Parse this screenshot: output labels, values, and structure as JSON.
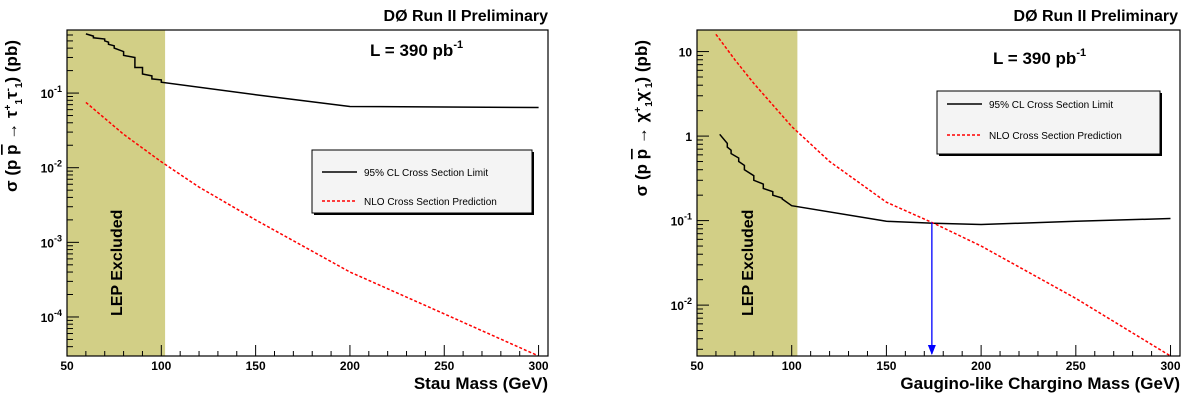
{
  "chart_data": [
    {
      "type": "line",
      "header": "DØ Run II Preliminary",
      "luminosity": {
        "base": "L = 390 pb",
        "sup": "-1"
      },
      "xlabel": "Stau Mass (GeV)",
      "ylabel": {
        "pre": "σ (p",
        "p2": "p",
        "arrow": " → ",
        "p1": "τ",
        "s1": "+",
        "b1": "1",
        "p3": "τ",
        "s2": "-",
        "b2": "1",
        "end": ") (pb)"
      },
      "xlim": [
        50,
        305
      ],
      "ylim": [
        3e-05,
        0.7
      ],
      "yscale": "log",
      "xticks": [
        50,
        100,
        150,
        200,
        250,
        300
      ],
      "yticks": [
        {
          "value": 0.1,
          "base": "10",
          "exp": "-1"
        },
        {
          "value": 0.01,
          "base": "10",
          "exp": "-2"
        },
        {
          "value": 0.001,
          "base": "10",
          "exp": "-3"
        },
        {
          "value": 0.0001,
          "base": "10",
          "exp": "-4"
        }
      ],
      "excluded_band": {
        "x": [
          50,
          102
        ],
        "label": "LEP Excluded",
        "color": "#d2cf86"
      },
      "legend": {
        "placement": "right"
      },
      "series": [
        {
          "name": "95% CL Cross Section Limit",
          "color": "#000000",
          "style": "solid",
          "x": [
            60,
            64,
            64,
            70,
            70,
            72,
            72,
            75,
            75,
            80,
            80,
            86,
            86,
            90,
            90,
            95,
            95,
            100,
            100,
            150,
            200,
            250,
            300
          ],
          "y": [
            0.62,
            0.58,
            0.55,
            0.53,
            0.5,
            0.48,
            0.45,
            0.43,
            0.4,
            0.36,
            0.32,
            0.3,
            0.22,
            0.22,
            0.18,
            0.17,
            0.155,
            0.15,
            0.14,
            0.095,
            0.066,
            0.065,
            0.064
          ]
        },
        {
          "name": "NLO Cross Section Prediction",
          "color": "#ff0000",
          "style": "dashed",
          "x": [
            60,
            80,
            100,
            120,
            150,
            200,
            250,
            300
          ],
          "y": [
            0.075,
            0.028,
            0.012,
            0.0055,
            0.002,
            0.0004,
            0.00011,
            3e-05
          ]
        }
      ]
    },
    {
      "type": "line",
      "header": "DØ Run II Preliminary",
      "luminosity": {
        "base": "L = 390 pb",
        "sup": "-1"
      },
      "xlabel": "Gaugino-like Chargino Mass (GeV)",
      "ylabel": {
        "pre": "σ (p",
        "p2": "p",
        "arrow": " → ",
        "p1": "χ",
        "s1": "+",
        "b1": "1",
        "p3": "χ",
        "s2": "-",
        "b2": "1",
        "end": ") (pb)"
      },
      "xlim": [
        50,
        305
      ],
      "ylim": [
        0.0025,
        18
      ],
      "yscale": "log",
      "xticks": [
        50,
        100,
        150,
        200,
        250,
        300
      ],
      "yticks": [
        {
          "value": 10,
          "base": "10",
          "exp": ""
        },
        {
          "value": 1,
          "base": "1",
          "exp": ""
        },
        {
          "value": 0.1,
          "base": "10",
          "exp": "-1"
        },
        {
          "value": 0.01,
          "base": "10",
          "exp": "-2"
        }
      ],
      "excluded_band": {
        "x": [
          50,
          103
        ],
        "label": "LEP Excluded",
        "color": "#d2cf86"
      },
      "legend": {
        "placement": "top-right"
      },
      "mass_limit_arrow": {
        "x": 174,
        "color": "#0000ff"
      },
      "series": [
        {
          "name": "95% CL Cross Section Limit",
          "color": "#000000",
          "style": "solid",
          "x": [
            62,
            66,
            66,
            68,
            68,
            72,
            72,
            75,
            75,
            80,
            80,
            85,
            85,
            90,
            90,
            95,
            95,
            100,
            150,
            175,
            200,
            250,
            300
          ],
          "y": [
            1.05,
            0.82,
            0.74,
            0.68,
            0.62,
            0.55,
            0.5,
            0.45,
            0.4,
            0.34,
            0.3,
            0.27,
            0.24,
            0.22,
            0.2,
            0.185,
            0.18,
            0.15,
            0.098,
            0.093,
            0.09,
            0.098,
            0.106
          ]
        },
        {
          "name": "NLO Cross Section Prediction",
          "color": "#ff0000",
          "style": "dashed",
          "x": [
            60,
            70,
            80,
            100,
            120,
            150,
            175,
            200,
            250,
            300
          ],
          "y": [
            16,
            8,
            4.2,
            1.3,
            0.5,
            0.165,
            0.093,
            0.05,
            0.012,
            0.0025
          ]
        }
      ]
    }
  ]
}
